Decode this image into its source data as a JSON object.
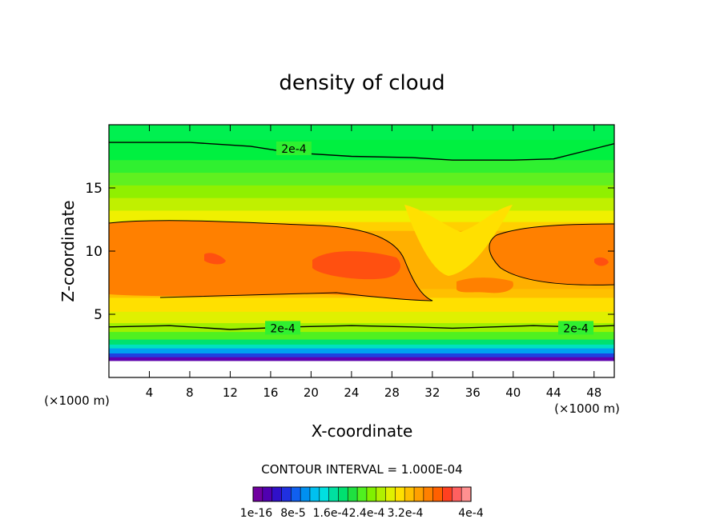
{
  "chart_data": {
    "type": "contour",
    "title": "density of cloud",
    "xlabel": "X-coordinate",
    "ylabel": "Z-coordinate",
    "x_unit_left": "(×1000 m)",
    "x_unit_right": "(×1000 m)",
    "xlim": [
      0,
      50
    ],
    "ylim": [
      0,
      20
    ],
    "x_ticks": [
      4,
      8,
      12,
      16,
      20,
      24,
      28,
      32,
      36,
      40,
      44,
      48
    ],
    "y_ticks": [
      5,
      10,
      15
    ],
    "contour_interval_text": "CONTOUR INTERVAL = 1.000E-04",
    "contour_labels": [
      "2e-4",
      "2e-4",
      "2e-4"
    ],
    "colorbar_labels": [
      "1e-16",
      "8e-5",
      "1.6e-4",
      "2.4e-4",
      "3.2e-4",
      "4e-4"
    ],
    "colorbar_colors": [
      "#7000a0",
      "#5000b0",
      "#3010c8",
      "#2030e0",
      "#1060f0",
      "#0090f0",
      "#00c0f0",
      "#00e0e0",
      "#00e0a0",
      "#00e070",
      "#20e040",
      "#50f020",
      "#80f000",
      "#b0f000",
      "#e0f000",
      "#ffe000",
      "#ffc000",
      "#ffa000",
      "#ff8000",
      "#ff6000",
      "#ff4020",
      "#ff6060",
      "#ff9090"
    ],
    "bands": [
      {
        "z": 18.8,
        "color": "#00f040"
      },
      {
        "z": 17.2,
        "color": "#30f030"
      },
      {
        "z": 16.2,
        "color": "#60f020"
      },
      {
        "z": 15.2,
        "color": "#90f000"
      },
      {
        "z": 14.2,
        "color": "#c0f000"
      },
      {
        "z": 13.2,
        "color": "#f0f000"
      },
      {
        "z": 12.3,
        "color": "#ffd000"
      },
      {
        "z": 11.6,
        "color": "#ffb000"
      },
      {
        "z": 7.0,
        "color": "#ffc000"
      },
      {
        "z": 6.3,
        "color": "#ffe000"
      },
      {
        "z": 5.2,
        "color": "#e0f000"
      },
      {
        "z": 4.3,
        "color": "#a0f000"
      },
      {
        "z": 3.6,
        "color": "#50f020"
      },
      {
        "z": 3.0,
        "color": "#00e070"
      },
      {
        "z": 2.6,
        "color": "#00e0c0"
      },
      {
        "z": 2.3,
        "color": "#00a0f0"
      },
      {
        "z": 1.9,
        "color": "#2040e0"
      },
      {
        "z": 1.6,
        "color": "#6000b0"
      },
      {
        "z": 1.3,
        "color": "#80f020"
      }
    ],
    "contour_2e4_upper": {
      "x": [
        0,
        8,
        14,
        18,
        24,
        30,
        34,
        40,
        44,
        48,
        50
      ],
      "z": [
        18.6,
        18.6,
        18.3,
        17.8,
        17.5,
        17.4,
        17.2,
        17.2,
        17.3,
        18.1,
        18.5
      ]
    },
    "contour_2e4_lower": {
      "x": [
        0,
        6,
        12,
        18,
        24,
        30,
        34,
        38,
        42,
        46,
        50
      ],
      "z": [
        4.0,
        4.1,
        3.8,
        4.0,
        4.1,
        4.0,
        3.9,
        4.0,
        4.1,
        4.0,
        4.1
      ]
    }
  }
}
